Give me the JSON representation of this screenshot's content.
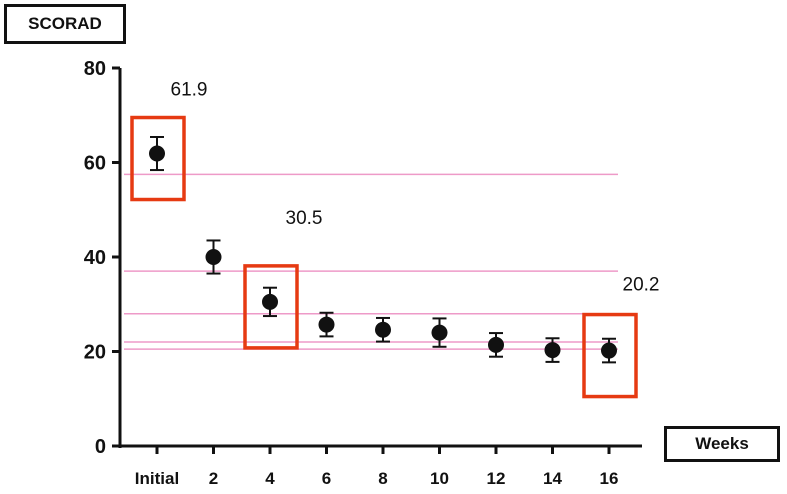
{
  "chart_data": {
    "type": "scatter",
    "ylabel": "SCORAD",
    "xlabel": "Weeks",
    "categories": [
      "Initial",
      "2",
      "4",
      "6",
      "8",
      "10",
      "12",
      "14",
      "16"
    ],
    "values": [
      61.9,
      40.0,
      30.5,
      25.7,
      24.6,
      24.0,
      21.4,
      20.3,
      20.2
    ],
    "errors": [
      3.5,
      3.5,
      3.0,
      2.5,
      2.5,
      3.0,
      2.5,
      2.5,
      2.5
    ],
    "ylim": [
      0,
      80
    ],
    "yticks": [
      0,
      20,
      40,
      60,
      80
    ],
    "reference_lines": [
      57.5,
      37.0,
      28.0,
      22.0,
      20.5
    ],
    "highlighted_categories": [
      "Initial",
      "4",
      "16"
    ],
    "annotations": [
      {
        "text": "61.9",
        "category": "Initial"
      },
      {
        "text": "30.5",
        "category": "4"
      },
      {
        "text": "20.2",
        "category": "16"
      }
    ],
    "colors": {
      "reference_line": "#ee9ac8",
      "highlight_box": "#e63a12",
      "marker": "#111111"
    }
  }
}
